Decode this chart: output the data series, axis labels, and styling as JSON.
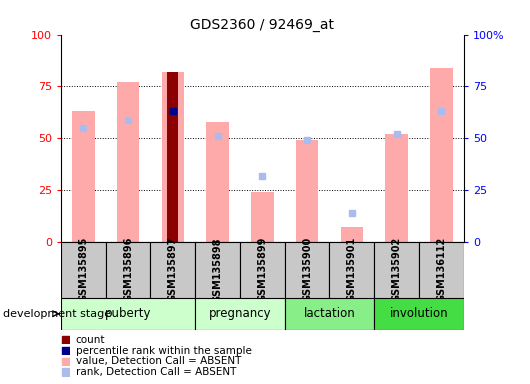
{
  "title": "GDS2360 / 92469_at",
  "samples": [
    "GSM135895",
    "GSM135896",
    "GSM135897",
    "GSM135898",
    "GSM135899",
    "GSM135900",
    "GSM135901",
    "GSM135902",
    "GSM136112"
  ],
  "stage_data": [
    {
      "name": "puberty",
      "start": 0,
      "end": 2,
      "color": "#ccffcc"
    },
    {
      "name": "pregnancy",
      "start": 3,
      "end": 4,
      "color": "#ccffcc"
    },
    {
      "name": "lactation",
      "start": 5,
      "end": 6,
      "color": "#88ee88"
    },
    {
      "name": "involution",
      "start": 7,
      "end": 8,
      "color": "#44dd44"
    }
  ],
  "value_bars": [
    63,
    77,
    82,
    58,
    24,
    49,
    7,
    52,
    84
  ],
  "rank_dots": [
    55,
    59,
    63,
    51,
    32,
    49,
    14,
    52,
    63
  ],
  "count_val": 82,
  "count_sample_idx": 2,
  "percentile_val": 63,
  "percentile_sample_idx": 2,
  "bar_color_value": "#ffaaaa",
  "bar_color_count": "#8b0000",
  "bar_color_percentile": "#00008b",
  "dot_color_rank_absent": "#aabbee",
  "yticks": [
    0,
    25,
    50,
    75,
    100
  ],
  "legend_items": [
    {
      "label": "count",
      "color": "#8b0000"
    },
    {
      "label": "percentile rank within the sample",
      "color": "#00008b"
    },
    {
      "label": "value, Detection Call = ABSENT",
      "color": "#ffaaaa"
    },
    {
      "label": "rank, Detection Call = ABSENT",
      "color": "#aabbee"
    }
  ],
  "development_stage_label": "development stage"
}
